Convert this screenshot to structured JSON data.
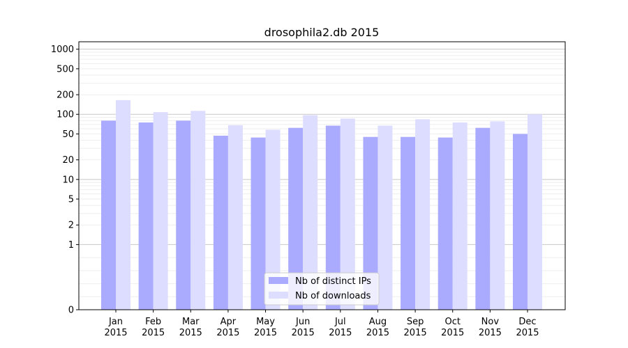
{
  "chart_data": {
    "type": "bar",
    "title": "drosophila2.db 2015",
    "xlabel": "",
    "ylabel": "",
    "yscale": "symlog",
    "ylim": [
      0,
      1300
    ],
    "yticks": [
      0,
      1,
      2,
      5,
      10,
      20,
      50,
      100,
      200,
      500,
      1000
    ],
    "ytick_labels": [
      "0",
      "1",
      "2",
      "5",
      "10",
      "20",
      "50",
      "100",
      "200",
      "500",
      "1000"
    ],
    "grid": true,
    "legend_position": "bottom-center",
    "categories": [
      {
        "month": "Jan",
        "year": "2015"
      },
      {
        "month": "Feb",
        "year": "2015"
      },
      {
        "month": "Mar",
        "year": "2015"
      },
      {
        "month": "Apr",
        "year": "2015"
      },
      {
        "month": "May",
        "year": "2015"
      },
      {
        "month": "Jun",
        "year": "2015"
      },
      {
        "month": "Jul",
        "year": "2015"
      },
      {
        "month": "Aug",
        "year": "2015"
      },
      {
        "month": "Sep",
        "year": "2015"
      },
      {
        "month": "Oct",
        "year": "2015"
      },
      {
        "month": "Nov",
        "year": "2015"
      },
      {
        "month": "Dec",
        "year": "2015"
      }
    ],
    "series": [
      {
        "name": "Nb of distinct IPs",
        "color": "#aaaaff",
        "values": [
          80,
          75,
          80,
          47,
          44,
          62,
          67,
          45,
          45,
          44,
          62,
          50
        ]
      },
      {
        "name": "Nb of downloads",
        "color": "#ddddff",
        "values": [
          165,
          108,
          113,
          68,
          58,
          97,
          86,
          67,
          84,
          75,
          78,
          100
        ]
      }
    ]
  }
}
